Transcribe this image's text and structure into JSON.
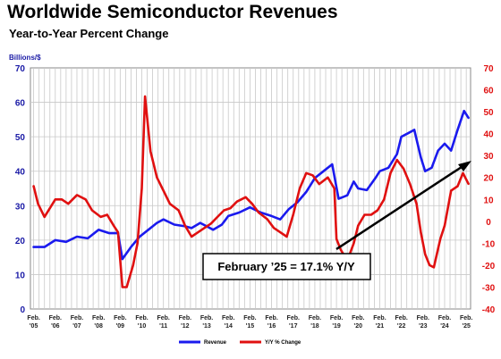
{
  "chart_data": {
    "type": "line",
    "title": "Worldwide Semiconductor Revenues",
    "subtitle": "Year-to-Year Percent Change",
    "unit_label": "Billions/$",
    "left_axis": {
      "ylim": [
        0,
        70
      ],
      "ticks": [
        "0",
        "10",
        "20",
        "30",
        "40",
        "50",
        "60",
        "70"
      ],
      "color": "#1a1aa6"
    },
    "right_axis": {
      "ylim": [
        -40,
        70
      ],
      "ticks": [
        "-40",
        "-30",
        "-20",
        "-10",
        "0",
        "10",
        "20",
        "30",
        "40",
        "50",
        "60",
        "70"
      ],
      "color": "#e01010"
    },
    "x_tick_labels": [
      {
        "top": "Feb.",
        "bottom": "'05"
      },
      {
        "top": "Feb.",
        "bottom": "'06"
      },
      {
        "top": "Feb.",
        "bottom": "'07"
      },
      {
        "top": "Feb.",
        "bottom": "'08"
      },
      {
        "top": "Feb.",
        "bottom": "'09"
      },
      {
        "top": "Feb.",
        "bottom": "'10"
      },
      {
        "top": "Feb.",
        "bottom": "'11"
      },
      {
        "top": "Feb.",
        "bottom": "'12"
      },
      {
        "top": "Feb.",
        "bottom": "'13"
      },
      {
        "top": "Feb.",
        "bottom": "'14"
      },
      {
        "top": "Feb.",
        "bottom": "'15"
      },
      {
        "top": "Feb.",
        "bottom": "'16"
      },
      {
        "top": "Feb.",
        "bottom": "'17"
      },
      {
        "top": "Feb.",
        "bottom": "'18"
      },
      {
        "top": "Feb.",
        "bottom": "'19"
      },
      {
        "top": "Feb.",
        "bottom": "'20"
      },
      {
        "top": "Feb.",
        "bottom": "'21"
      },
      {
        "top": "Feb.",
        "bottom": "'22"
      },
      {
        "top": "Feb.",
        "bottom": "'23"
      },
      {
        "top": "Feb.",
        "bottom": "'24"
      },
      {
        "top": "Feb.",
        "bottom": "'25"
      }
    ],
    "grid": true,
    "legend_position": "bottom",
    "annotation": "February ’25 = 17.1% Y/Y",
    "series": [
      {
        "name": "Revenue",
        "axis": "left",
        "color": "#1a1aee",
        "x": [
          2005.0,
          2005.5,
          2006.0,
          2006.5,
          2007.0,
          2007.5,
          2008.0,
          2008.5,
          2008.9,
          2009.1,
          2009.5,
          2009.9,
          2010.3,
          2010.7,
          2011.0,
          2011.5,
          2012.0,
          2012.3,
          2012.7,
          2013.0,
          2013.3,
          2013.7,
          2014.0,
          2014.5,
          2015.0,
          2015.5,
          2016.0,
          2016.4,
          2016.8,
          2017.2,
          2017.6,
          2018.0,
          2018.4,
          2018.8,
          2019.1,
          2019.5,
          2019.8,
          2020.0,
          2020.4,
          2020.8,
          2021.0,
          2021.4,
          2021.8,
          2022.0,
          2022.3,
          2022.6,
          2022.9,
          2023.1,
          2023.4,
          2023.7,
          2024.0,
          2024.3,
          2024.6,
          2024.9,
          2025.1
        ],
        "values": [
          18,
          18,
          20,
          19.5,
          21,
          20.5,
          23,
          22,
          22,
          14.5,
          18,
          21,
          23,
          25,
          26,
          24.5,
          24,
          23.5,
          25,
          24,
          23,
          24.5,
          27,
          28,
          29.5,
          28,
          27,
          26,
          29,
          31,
          34,
          38,
          40,
          42,
          32,
          33,
          37,
          35,
          34.5,
          38,
          40,
          41,
          45,
          50,
          51,
          52,
          44,
          40,
          41,
          46,
          48,
          46,
          52,
          57.5,
          55.5
        ]
      },
      {
        "name": "Y/Y % Change",
        "axis": "right",
        "color": "#e01010",
        "x": [
          2005.0,
          2005.2,
          2005.5,
          2006.0,
          2006.3,
          2006.6,
          2007.0,
          2007.4,
          2007.7,
          2008.1,
          2008.4,
          2008.7,
          2008.9,
          2009.1,
          2009.3,
          2009.6,
          2009.8,
          2010.0,
          2010.15,
          2010.4,
          2010.7,
          2011.0,
          2011.3,
          2011.7,
          2012.0,
          2012.3,
          2012.6,
          2012.9,
          2013.2,
          2013.5,
          2013.8,
          2014.1,
          2014.4,
          2014.8,
          2015.1,
          2015.4,
          2015.8,
          2016.1,
          2016.4,
          2016.7,
          2017.0,
          2017.3,
          2017.6,
          2017.9,
          2018.2,
          2018.6,
          2018.9,
          2019.0,
          2019.2,
          2019.5,
          2019.8,
          2020.0,
          2020.3,
          2020.6,
          2020.9,
          2021.2,
          2021.5,
          2021.8,
          2022.1,
          2022.4,
          2022.7,
          2022.9,
          2023.1,
          2023.3,
          2023.5,
          2023.8,
          2024.0,
          2024.3,
          2024.6,
          2024.85,
          2025.1
        ],
        "values": [
          16,
          8,
          2,
          10,
          10,
          8,
          12,
          10,
          5,
          2,
          3,
          -2,
          -5,
          -30,
          -30,
          -20,
          -10,
          15,
          57,
          32,
          20,
          14,
          8,
          5,
          -2,
          -7,
          -5,
          -3,
          -1,
          2,
          5,
          6,
          9,
          11,
          8,
          4,
          1,
          -3,
          -5,
          -7,
          3,
          15,
          22,
          21,
          17,
          20,
          15,
          -8,
          -13,
          -18,
          -10,
          -2,
          3,
          3,
          5,
          10,
          22,
          28,
          24,
          17,
          8,
          -5,
          -15,
          -20,
          -21,
          -8,
          -2,
          14,
          16,
          22,
          17.1
        ]
      }
    ]
  }
}
